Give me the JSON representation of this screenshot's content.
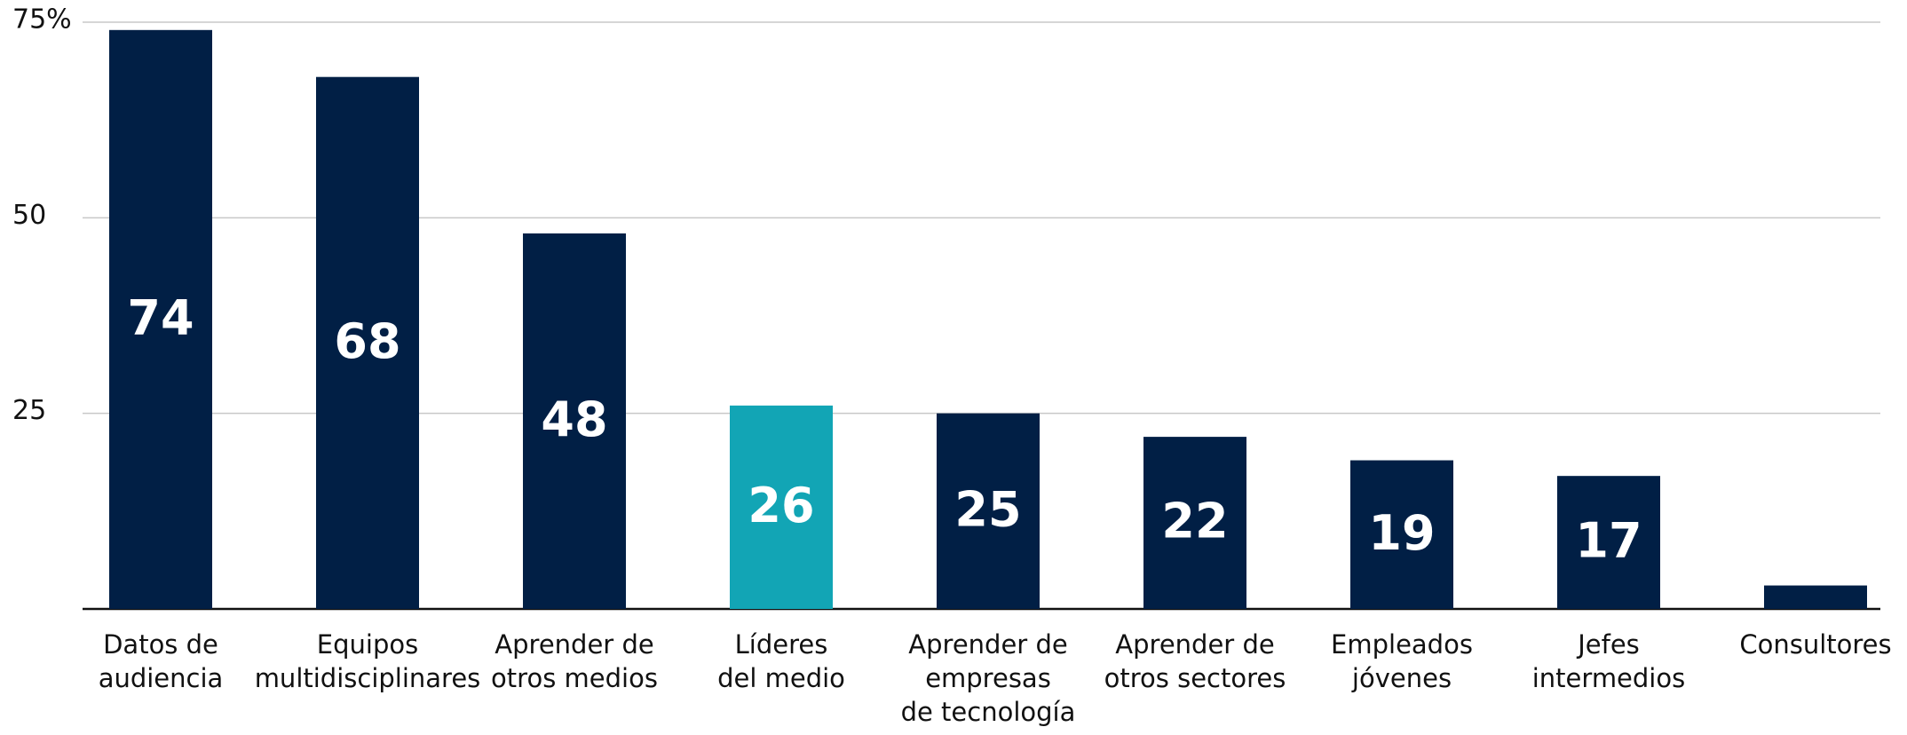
{
  "chart_data": {
    "type": "bar",
    "categories": [
      [
        "Datos de",
        "audiencia"
      ],
      [
        "Equipos",
        "multidisciplinares"
      ],
      [
        "Aprender de",
        "otros medios"
      ],
      [
        "Líderes",
        "del medio"
      ],
      [
        "Aprender de",
        "empresas",
        "de tecnología"
      ],
      [
        "Aprender de",
        "otros sectores"
      ],
      [
        "Empleados",
        "jóvenes"
      ],
      [
        "Jefes",
        "intermedios"
      ],
      [
        "Consultores"
      ]
    ],
    "values": [
      74,
      68,
      48,
      26,
      25,
      22,
      19,
      17,
      3
    ],
    "value_labels": [
      "74",
      "68",
      "48",
      "26",
      "25",
      "22",
      "19",
      "17",
      null
    ],
    "colors": [
      "#011f45",
      "#011f45",
      "#011f45",
      "#12a5b5",
      "#011f45",
      "#011f45",
      "#011f45",
      "#011f45",
      "#011f45"
    ],
    "ylim": [
      0,
      75
    ],
    "yticks": [
      25,
      50,
      {
        "value": 75,
        "label": "75%"
      }
    ],
    "grid": true
  }
}
